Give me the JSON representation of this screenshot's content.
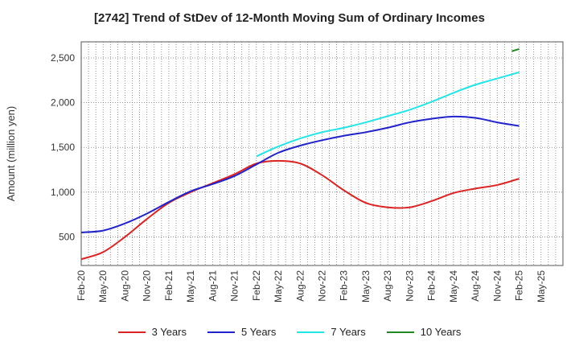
{
  "chart_data": {
    "type": "line",
    "title": "[2742]  Trend of StDev of 12-Month Moving Sum of Ordinary Incomes",
    "xlabel": "",
    "ylabel": "Amount (million yen)",
    "ylim": [
      180,
      2680
    ],
    "yticks": [
      500,
      1000,
      1500,
      2000,
      2500
    ],
    "ytick_labels": [
      "500",
      "1,000",
      "1,500",
      "2,000",
      "2,500"
    ],
    "categories": [
      "Feb-20",
      "May-20",
      "Aug-20",
      "Nov-20",
      "Feb-21",
      "May-21",
      "Aug-21",
      "Nov-21",
      "Feb-22",
      "May-22",
      "Aug-22",
      "Nov-22",
      "Feb-23",
      "May-23",
      "Aug-23",
      "Nov-23",
      "Feb-24",
      "May-24",
      "Aug-24",
      "Nov-24",
      "Feb-25",
      "May-25"
    ],
    "grid": true,
    "legend_position": "bottom",
    "series": [
      {
        "name": "3 Years",
        "color": "#dd2222",
        "values": [
          250,
          330,
          500,
          700,
          880,
          1000,
          1100,
          1200,
          1320,
          1350,
          1320,
          1190,
          1020,
          880,
          830,
          830,
          900,
          990,
          1040,
          1080,
          1150,
          null
        ]
      },
      {
        "name": "5 Years",
        "color": "#2222cc",
        "values": [
          550,
          570,
          650,
          760,
          890,
          1010,
          1090,
          1180,
          1310,
          1440,
          1520,
          1580,
          1630,
          1670,
          1720,
          1780,
          1820,
          1845,
          1830,
          1780,
          1740,
          null
        ]
      },
      {
        "name": "7 Years",
        "color": "#22e5e5",
        "values": [
          null,
          null,
          null,
          null,
          null,
          null,
          null,
          null,
          1400,
          1510,
          1600,
          1670,
          1720,
          1780,
          1850,
          1920,
          2010,
          2110,
          2200,
          2270,
          2340,
          null
        ]
      },
      {
        "name": "10 Years",
        "color": "#228822",
        "values": [
          null,
          null,
          null,
          null,
          null,
          null,
          null,
          null,
          null,
          null,
          null,
          null,
          null,
          null,
          null,
          null,
          null,
          null,
          null,
          null,
          2600,
          null
        ],
        "partial_start": 2575
      }
    ]
  }
}
